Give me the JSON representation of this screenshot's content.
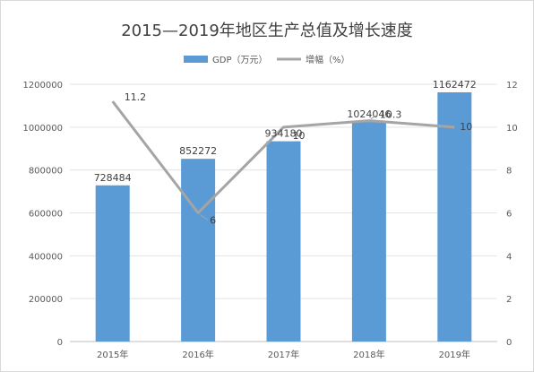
{
  "chart_data": {
    "type": "bar+line",
    "title": "2015—2019年地区生产总值及增长速度",
    "categories": [
      "2015年",
      "2016年",
      "2017年",
      "2018年",
      "2019年"
    ],
    "series": [
      {
        "name": "GDP（万元）",
        "type": "bar",
        "axis": "left",
        "color": "#5b9bd5",
        "values": [
          728484,
          852272,
          934180,
          1024046,
          1162472
        ],
        "labels": [
          "728484",
          "852272",
          "934180",
          "1024046",
          "1162472"
        ]
      },
      {
        "name": "增幅（%）",
        "type": "line",
        "axis": "right",
        "color": "#a5a5a5",
        "values": [
          11.2,
          6,
          10,
          10.3,
          10
        ],
        "labels": [
          "11.2",
          "6",
          "10",
          "10.3",
          "10"
        ]
      }
    ],
    "y_left": {
      "range": [
        0,
        1200000
      ],
      "ticks": [
        "0",
        "200000",
        "400000",
        "600000",
        "800000",
        "1000000",
        "1200000"
      ]
    },
    "y_right": {
      "range": [
        0,
        12
      ],
      "ticks": [
        "0",
        "2",
        "4",
        "6",
        "8",
        "10",
        "12"
      ]
    },
    "grid": true,
    "legend_position": "top-center"
  }
}
